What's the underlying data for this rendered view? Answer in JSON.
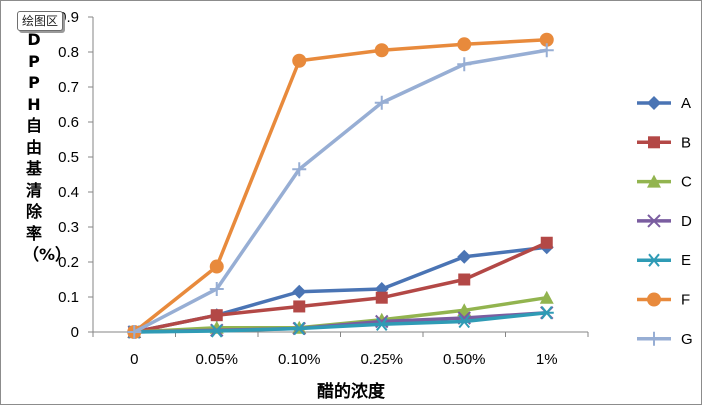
{
  "plot_area_tag": "绘图区",
  "chart_data": {
    "type": "line",
    "categories": [
      "0",
      "0.05%",
      "0.10%",
      "0.25%",
      "0.50%",
      "1%"
    ],
    "xlabel": "醋的浓度",
    "ylabel": "DPPH自由基清除率（%）",
    "ylim": [
      0,
      0.9
    ],
    "yticks": [
      "0",
      "0.1",
      "0.2",
      "0.3",
      "0.4",
      "0.5",
      "0.6",
      "0.7",
      "0.8",
      "0.9"
    ],
    "grid": false,
    "legend_position": "right",
    "series": [
      {
        "name": "A",
        "color": "#4a74b4",
        "marker": "diamond",
        "values": [
          0,
          0.048,
          0.115,
          0.123,
          0.215,
          0.242
        ]
      },
      {
        "name": "B",
        "color": "#b34846",
        "marker": "square",
        "values": [
          0,
          0.048,
          0.073,
          0.098,
          0.15,
          0.255
        ]
      },
      {
        "name": "C",
        "color": "#92b44f",
        "marker": "triangle",
        "values": [
          0,
          0.012,
          0.012,
          0.035,
          0.062,
          0.098
        ]
      },
      {
        "name": "D",
        "color": "#7a5da0",
        "marker": "x",
        "values": [
          0,
          0.005,
          0.01,
          0.03,
          0.04,
          0.055
        ]
      },
      {
        "name": "E",
        "color": "#2f9bb5",
        "marker": "star",
        "values": [
          0,
          0.003,
          0.01,
          0.022,
          0.03,
          0.055
        ]
      },
      {
        "name": "F",
        "color": "#e88a3c",
        "marker": "circle",
        "values": [
          0,
          0.187,
          0.775,
          0.805,
          0.822,
          0.835
        ]
      },
      {
        "name": "G",
        "color": "#97aed4",
        "marker": "plus",
        "values": [
          0,
          0.123,
          0.465,
          0.655,
          0.765,
          0.805
        ]
      }
    ]
  }
}
